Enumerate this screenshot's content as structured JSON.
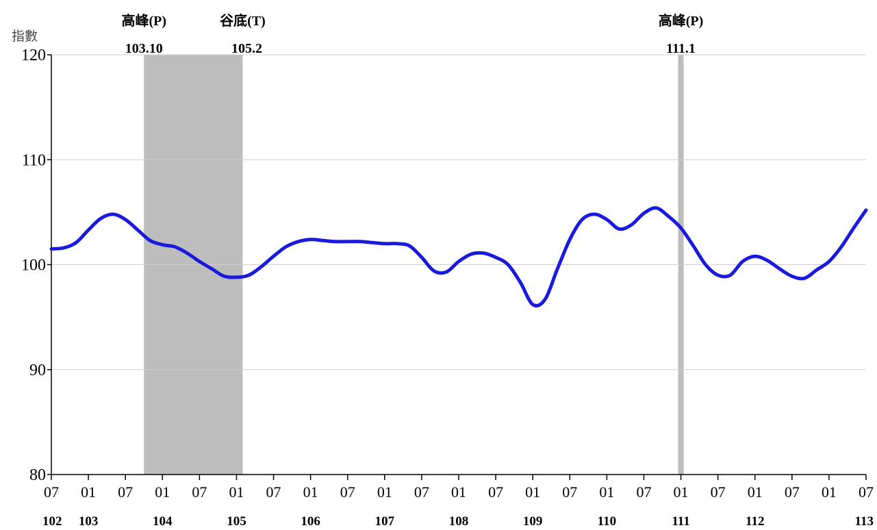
{
  "chart_data": {
    "type": "line",
    "ylabel": "指數",
    "ylim": [
      80,
      120
    ],
    "y_ticks": [
      80,
      90,
      100,
      110,
      120
    ],
    "grid": "horizontal",
    "line_color": "#1a1adc",
    "shade_color": "#bdbdbd",
    "x_tick_labels": [
      "07",
      "01",
      "07",
      "01",
      "07",
      "01",
      "07",
      "01",
      "07",
      "01",
      "07",
      "01",
      "07",
      "01",
      "07",
      "01",
      "07",
      "01",
      "07",
      "01",
      "07",
      "01",
      "07"
    ],
    "year_labels": [
      "102",
      "103",
      "104",
      "105",
      "106",
      "107",
      "108",
      "109",
      "110",
      "111",
      "112",
      "113"
    ],
    "series": [
      {
        "x": [
          "102-07",
          "102-09",
          "102-11",
          "103-01",
          "103-03",
          "103-05",
          "103-07",
          "103-09",
          "103-11",
          "104-01",
          "104-03",
          "104-05",
          "104-07",
          "104-09",
          "104-11",
          "105-01",
          "105-03",
          "105-05",
          "105-07",
          "105-09",
          "105-11",
          "106-01",
          "106-03",
          "106-05",
          "106-07",
          "106-09",
          "106-11",
          "107-01",
          "107-03",
          "107-05",
          "107-07",
          "107-09",
          "107-11",
          "108-01",
          "108-03",
          "108-05",
          "108-07",
          "108-09",
          "108-11",
          "109-01",
          "109-03",
          "109-05",
          "109-07",
          "109-09",
          "109-11",
          "110-01",
          "110-03",
          "110-05",
          "110-07",
          "110-09",
          "110-11",
          "111-01",
          "111-03",
          "111-05",
          "111-07",
          "111-09",
          "111-11",
          "112-01",
          "112-03",
          "112-05",
          "112-07",
          "112-09",
          "112-11",
          "113-01",
          "113-03",
          "113-05",
          "113-07"
        ],
        "values": [
          101.5,
          101.6,
          102.1,
          103.3,
          104.4,
          104.8,
          104.3,
          103.3,
          102.3,
          101.9,
          101.7,
          101.1,
          100.3,
          99.6,
          98.9,
          98.8,
          99.0,
          99.8,
          100.8,
          101.7,
          102.2,
          102.4,
          102.3,
          102.2,
          102.2,
          102.2,
          102.1,
          102.0,
          102.0,
          101.8,
          100.7,
          99.4,
          99.3,
          100.3,
          101.0,
          101.1,
          100.7,
          100.0,
          98.3,
          96.2,
          96.7,
          99.6,
          102.4,
          104.3,
          104.8,
          104.3,
          103.4,
          103.8,
          104.9,
          105.4,
          104.6,
          103.5,
          101.8,
          100.0,
          99.0,
          99.0,
          100.3,
          100.8,
          100.4,
          99.6,
          98.9,
          98.7,
          99.5,
          100.3,
          101.7,
          103.5,
          105.2
        ]
      }
    ],
    "shaded_periods": [
      {
        "start": "103-10",
        "end": "105-02"
      },
      {
        "start": "111-01",
        "end": "111-01"
      }
    ],
    "annotations": [
      {
        "label": "高峰(P)",
        "date_label": "103.10"
      },
      {
        "label": "谷底(T)",
        "date_label": "105.2"
      },
      {
        "label": "高峰(P)",
        "date_label": "111.1"
      }
    ]
  }
}
